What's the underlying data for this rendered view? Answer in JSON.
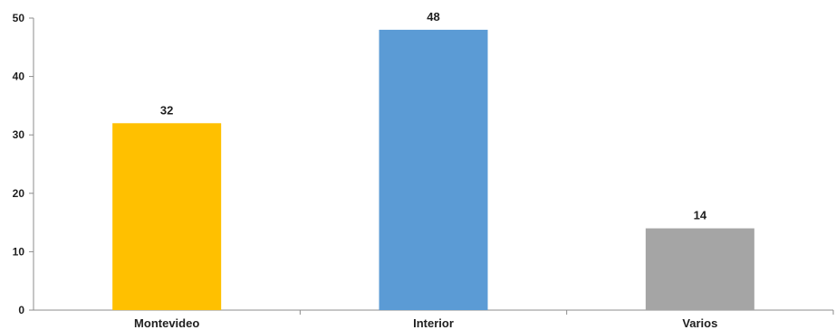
{
  "chart_data": {
    "type": "bar",
    "categories": [
      "Montevideo",
      "Interior",
      "Varios"
    ],
    "values": [
      32,
      48,
      14
    ],
    "value_labels": [
      "32",
      "48",
      "14"
    ],
    "colors": [
      "#FFC000",
      "#5B9BD5",
      "#A5A5A5"
    ],
    "ylim": [
      0,
      50
    ],
    "yticks": [
      0,
      10,
      20,
      30,
      40,
      50
    ],
    "ytick_labels": [
      "0",
      "10",
      "20",
      "30",
      "40",
      "50"
    ],
    "title": "",
    "xlabel": "",
    "ylabel": "",
    "grid": false,
    "legend": "none"
  }
}
